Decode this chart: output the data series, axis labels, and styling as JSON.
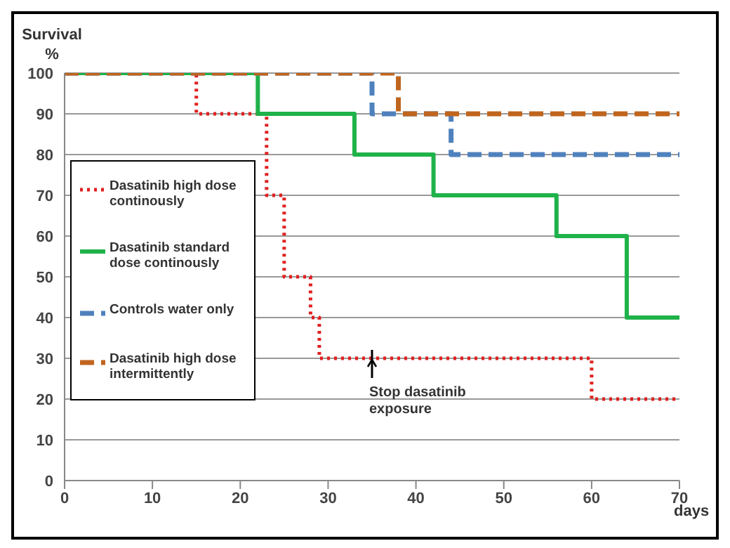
{
  "chart_data": {
    "type": "step",
    "ylabel": "Survival %",
    "xlabel": "days",
    "xlim": [
      0,
      70
    ],
    "xticks": [
      0,
      10,
      20,
      30,
      40,
      50,
      60,
      70
    ],
    "ylim": [
      0,
      100
    ],
    "yticks": [
      0,
      10,
      20,
      30,
      40,
      50,
      60,
      70,
      80,
      90,
      100
    ],
    "grid": "y",
    "legend": "left",
    "marker": "none",
    "series": [
      {
        "name": "Dasatinib high dose continously",
        "color": "#e02020",
        "line_style": "dotted",
        "x": [
          0,
          15,
          23,
          25,
          28,
          29,
          60,
          70
        ],
        "values": [
          100,
          90,
          70,
          50,
          40,
          30,
          20,
          20
        ]
      },
      {
        "name": "Dasatinib standard dose continously",
        "color": "#1fb24a",
        "line_style": "solid",
        "x": [
          0,
          22,
          33,
          42,
          56,
          64,
          70
        ],
        "values": [
          100,
          90,
          80,
          70,
          60,
          40,
          40
        ]
      },
      {
        "name": "Controls water only",
        "color": "#4f81bd",
        "line_style": "dashed",
        "x": [
          0,
          35,
          44,
          70
        ],
        "values": [
          100,
          90,
          80,
          80
        ]
      },
      {
        "name": "Dasatinib high dose intermittently",
        "color": "#c0651e",
        "line_style": "dashed",
        "x": [
          0,
          38,
          70
        ],
        "values": [
          100,
          90,
          90
        ]
      }
    ],
    "annotations": [
      {
        "text": "Stop dasatinib exposure",
        "x": 35,
        "y": 30
      }
    ]
  }
}
